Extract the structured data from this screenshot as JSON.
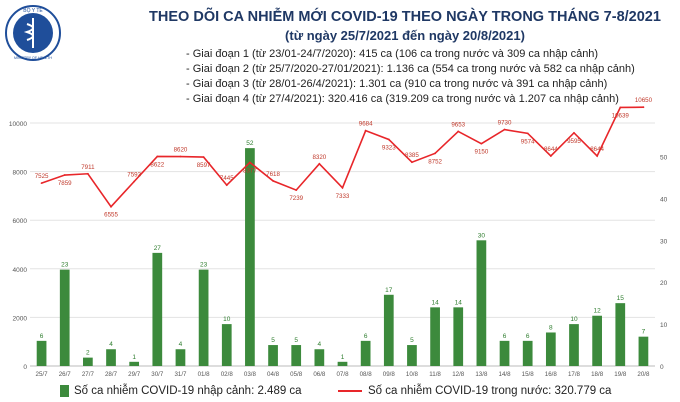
{
  "header": {
    "logo_text_top": "BỘ Y TẾ",
    "logo_text_bottom": "MINISTRY OF HEALTH",
    "title": "THEO DÕI CA NHIỄM MỚI COVID-19 THEO NGÀY TRONG THÁNG 7-8/2021",
    "subtitle": "(từ ngày 25/7/2021 đến ngày 20/8/2021)",
    "phases": [
      "- Giai đoạn 1 (từ 23/01-24/7/2020): 415 ca (106 ca trong nước và 309 ca nhập cảnh)",
      "- Giai đoạn 2 (từ 25/7/2020-27/01/2021): 1.136 ca (554 ca trong nước và 582 ca nhập cảnh)",
      "- Giai đoạn 3 (từ 28/01-26/4/2021): 1.301 ca (910 ca trong nước và 391 ca nhập cảnh)",
      "- Giai đoạn 4 (từ 27/4/2021): 320.416 ca (319.209 ca trong nước và 1.207 ca nhập cảnh)"
    ]
  },
  "chart_data": {
    "type": "bar",
    "categories": [
      "25/7",
      "26/7",
      "27/7",
      "28/7",
      "29/7",
      "30/7",
      "31/7",
      "01/8",
      "02/8",
      "03/8",
      "04/8",
      "05/8",
      "06/8",
      "07/8",
      "08/8",
      "09/8",
      "10/8",
      "11/8",
      "12/8",
      "13/8",
      "14/8",
      "15/8",
      "16/8",
      "17/8",
      "18/8",
      "19/8",
      "20/8"
    ],
    "series": [
      {
        "name": "Số ca nhiễm COVID-19 nhập cảnh: 2.489 ca",
        "type": "bar",
        "axis": "right",
        "values": [
          6,
          23,
          2,
          4,
          1,
          27,
          4,
          23,
          10,
          52,
          5,
          5,
          4,
          1,
          6,
          17,
          5,
          14,
          14,
          30,
          6,
          6,
          8,
          10,
          12,
          15,
          7
        ]
      },
      {
        "name": "Số ca nhiễm COVID-19 trong nước: 320.779 ca",
        "type": "line",
        "axis": "left",
        "values": [
          7525,
          7859,
          7911,
          6555,
          7593,
          8622,
          8620,
          8597,
          7445,
          8377,
          7618,
          7239,
          8320,
          7333,
          9684,
          9323,
          8385,
          8752,
          9653,
          9150,
          9730,
          9574,
          8644,
          9595,
          8644,
          10639,
          10650
        ]
      }
    ],
    "left_axis": {
      "ylim": [
        0,
        10000
      ],
      "ticks": [
        0,
        2000,
        4000,
        6000,
        8000,
        10000
      ]
    },
    "right_axis": {
      "ylim": [
        0,
        58
      ],
      "ticks": [
        0,
        10,
        20,
        30,
        40,
        50
      ]
    },
    "grid": true,
    "legend": "bottom",
    "colors": {
      "bar": "#3c8a3c",
      "line": "#e8262a",
      "title": "#1f3864"
    }
  }
}
